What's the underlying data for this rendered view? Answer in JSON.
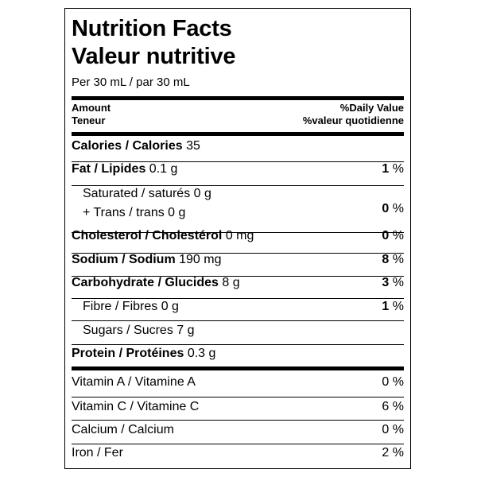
{
  "title_en": "Nutrition Facts",
  "title_fr": "Valeur nutritive",
  "serving": "Per 30 mL / par 30 mL",
  "header": {
    "amount": "Amount",
    "teneur": "Teneur",
    "dv": "%Daily Value",
    "vq": "%valeur quotidienne"
  },
  "calories": {
    "label": "Calories / Calories",
    "value": "35"
  },
  "fat": {
    "label": "Fat / Lipides",
    "value": "0.1 g",
    "pct": "1",
    "unit": "%"
  },
  "saturated": {
    "label": "Saturated / saturés 0 g"
  },
  "trans": {
    "label": "+ Trans / trans 0 g"
  },
  "sat_trans_pct": {
    "pct": "0",
    "unit": "%"
  },
  "cholesterol": {
    "label": "Cholesterol / Cholestérol",
    "value": "0 mg",
    "pct": "0",
    "unit": "%"
  },
  "sodium": {
    "label": "Sodium / Sodium",
    "value": "190 mg",
    "pct": "8",
    "unit": "%"
  },
  "carbohydrate": {
    "label": "Carbohydrate / Glucides",
    "value": "8 g",
    "pct": "3",
    "unit": "%"
  },
  "fibre": {
    "label": "Fibre / Fibres 0 g",
    "pct": "1",
    "unit": "%"
  },
  "sugars": {
    "label": "Sugars / Sucres 7 g"
  },
  "protein": {
    "label": "Protein / Protéines",
    "value": "0.3 g"
  },
  "vitamin_a": {
    "label": "Vitamin A / Vitamine A",
    "pct": "0 %"
  },
  "vitamin_c": {
    "label": "Vitamin C / Vitamine C",
    "pct": "6 %"
  },
  "calcium": {
    "label": "Calcium / Calcium",
    "pct": "0 %"
  },
  "iron": {
    "label": "Iron / Fer",
    "pct": "2 %"
  }
}
